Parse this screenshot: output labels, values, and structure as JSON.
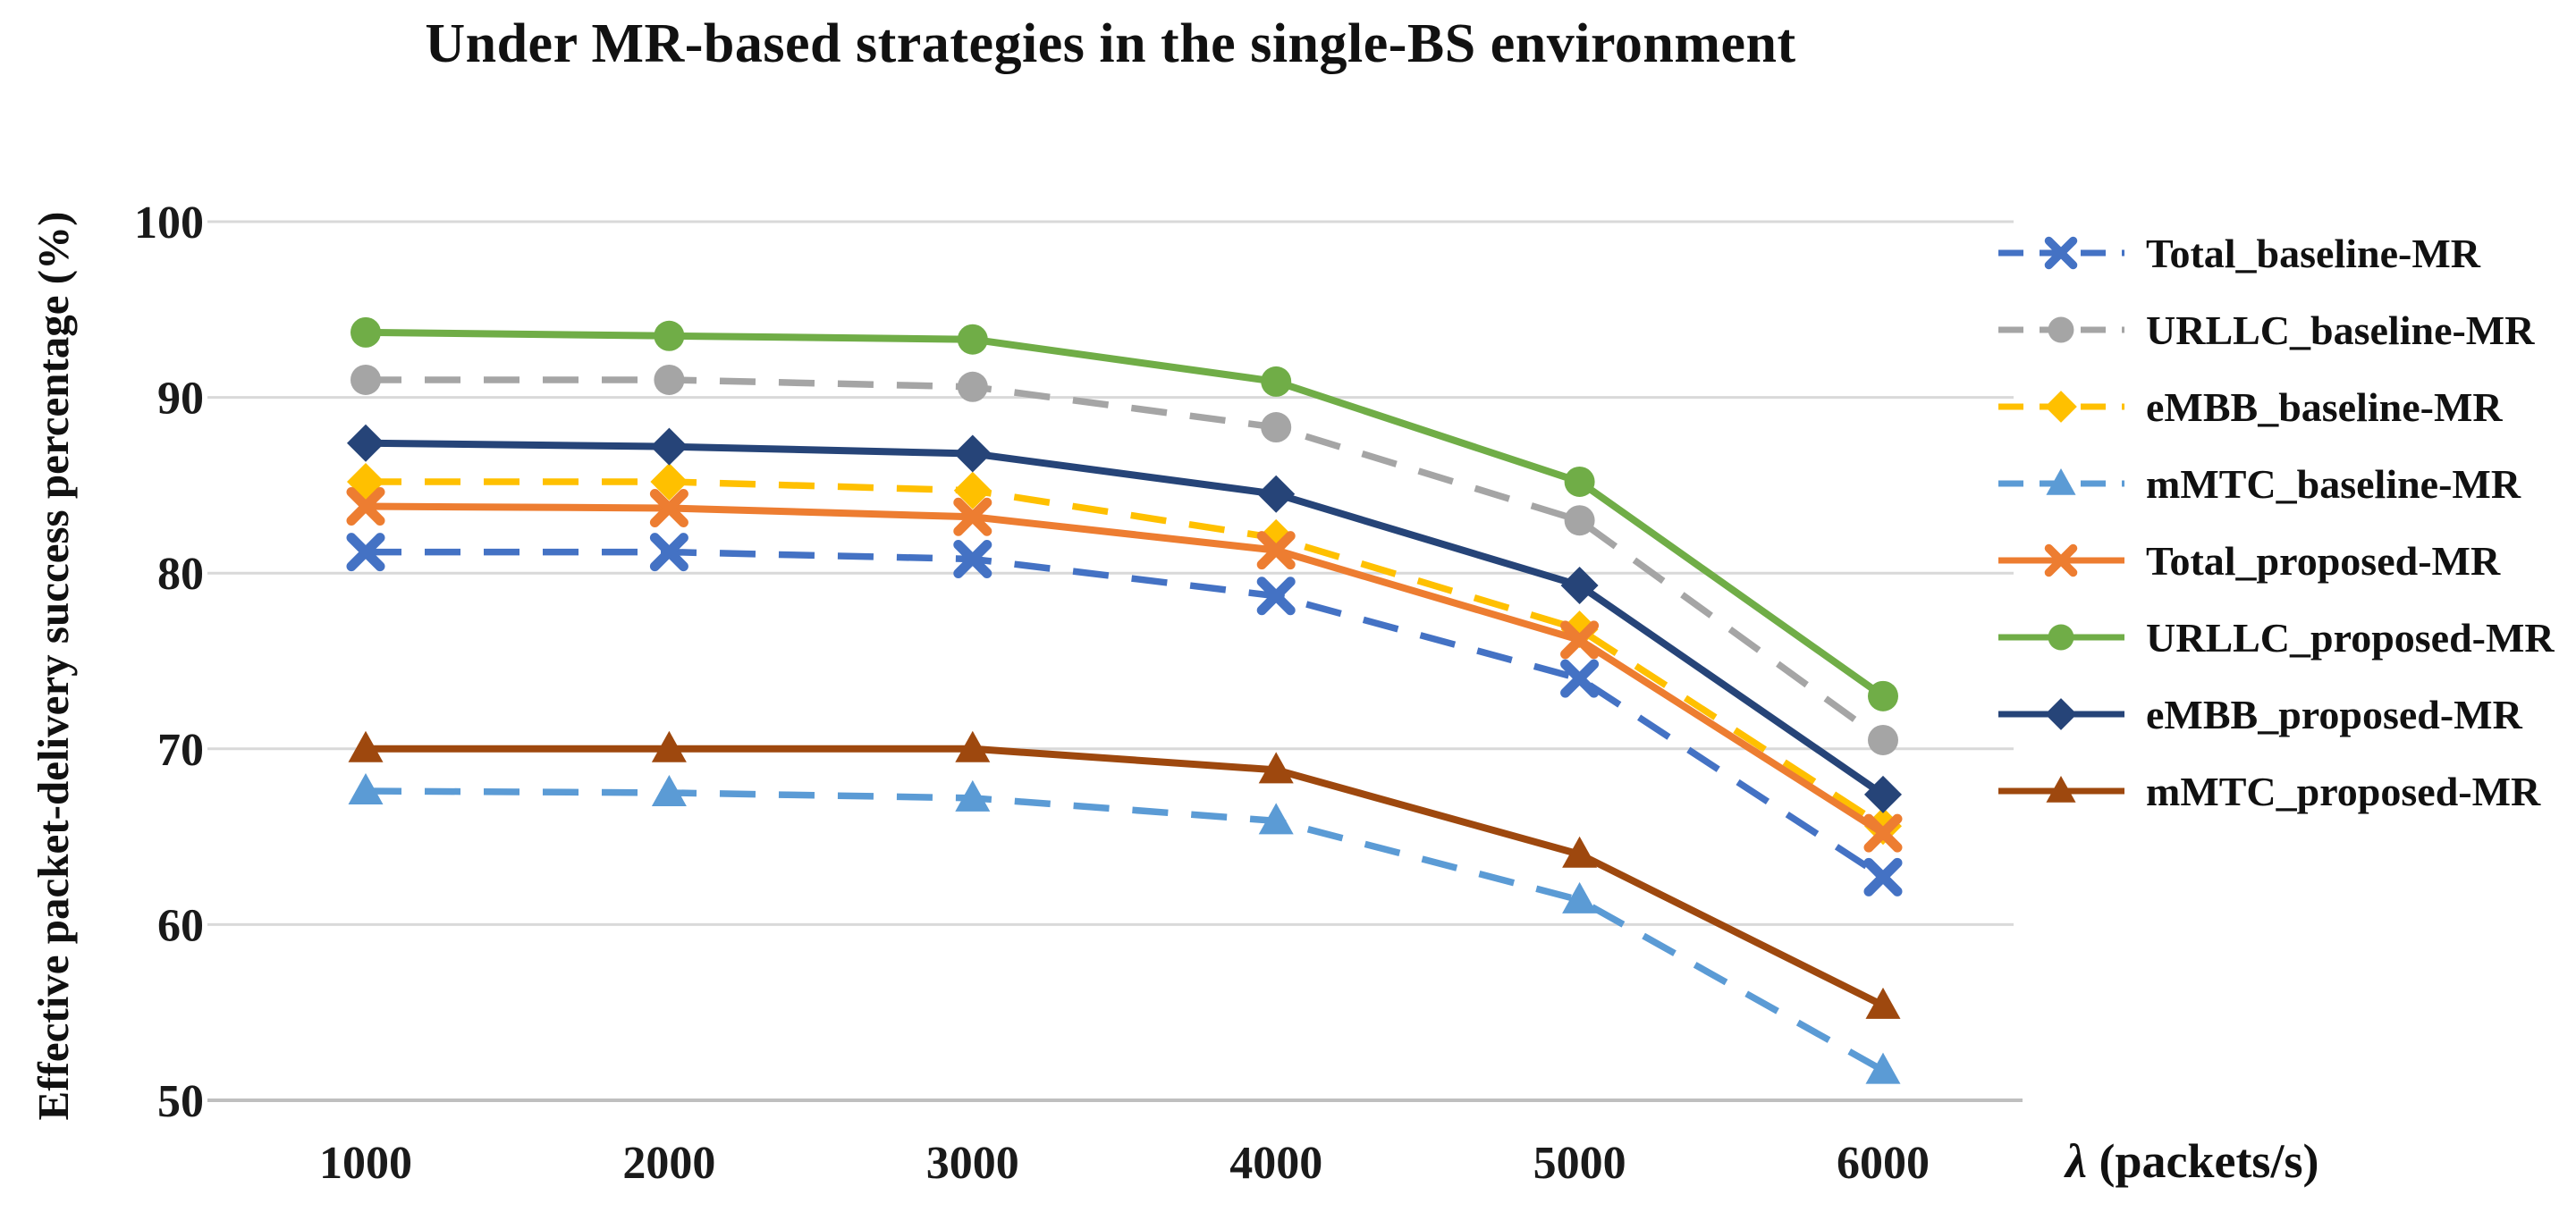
{
  "chart_data": {
    "type": "line",
    "title": "Under MR-based strategies in the single-BS environment",
    "x_label": "λ (packets/s)",
    "y_label": "Effective packet-delivery success percentage (%)",
    "x_categories": [
      "1000",
      "2000",
      "3000",
      "4000",
      "5000",
      "6000"
    ],
    "y_ticks": [
      50,
      60,
      70,
      80,
      90,
      100
    ],
    "ylim": [
      50,
      100
    ],
    "grid": "horizontal",
    "legend_position": "right",
    "grid_color": "#d9d9d9",
    "axis_line_color": "#bfbfbf",
    "series": [
      {
        "name": "Total_baseline-MR",
        "color": "#4472C4",
        "style": "dashed",
        "marker": "x",
        "values": [
          81.2,
          81.2,
          80.8,
          78.7,
          74.0,
          62.7
        ]
      },
      {
        "name": "URLLC_baseline-MR",
        "color": "#A5A5A5",
        "style": "dashed",
        "marker": "circle",
        "values": [
          91.0,
          91.0,
          90.6,
          88.3,
          83.0,
          70.5
        ]
      },
      {
        "name": "eMBB_baseline-MR",
        "color": "#FFC000",
        "style": "dashed",
        "marker": "diamond",
        "values": [
          85.2,
          85.2,
          84.7,
          82.0,
          76.8,
          65.6
        ]
      },
      {
        "name": "mMTC_baseline-MR",
        "color": "#5B9BD5",
        "style": "dashed",
        "marker": "triangle",
        "values": [
          67.6,
          67.5,
          67.2,
          65.9,
          61.4,
          51.7
        ]
      },
      {
        "name": "Total_proposed-MR",
        "color": "#ED7D31",
        "style": "solid",
        "marker": "x",
        "values": [
          83.8,
          83.7,
          83.2,
          81.3,
          76.2,
          65.2
        ]
      },
      {
        "name": "URLLC_proposed-MR",
        "color": "#70AD47",
        "style": "solid",
        "marker": "circle",
        "values": [
          93.7,
          93.5,
          93.3,
          90.9,
          85.2,
          73.0
        ]
      },
      {
        "name": "eMBB_proposed-MR",
        "color": "#264478",
        "style": "solid",
        "marker": "diamond",
        "values": [
          87.4,
          87.2,
          86.8,
          84.5,
          79.3,
          67.4
        ]
      },
      {
        "name": "mMTC_proposed-MR",
        "color": "#9E480E",
        "style": "solid",
        "marker": "triangle",
        "values": [
          70.0,
          70.0,
          70.0,
          68.8,
          64.0,
          55.4
        ]
      }
    ]
  }
}
